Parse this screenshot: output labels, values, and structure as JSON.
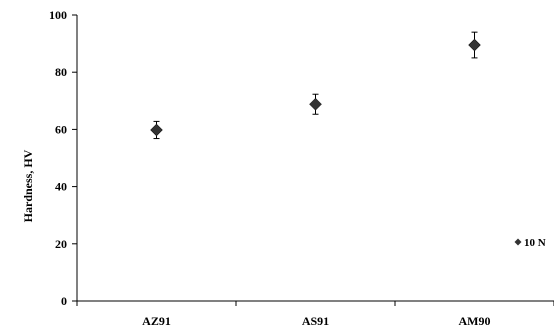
{
  "chart_data": {
    "type": "scatter",
    "categories": [
      "AZ91",
      "AS91",
      "AM90"
    ],
    "series": [
      {
        "name": "10 N",
        "values": [
          59.8,
          68.8,
          89.5
        ],
        "error": [
          3.0,
          3.5,
          4.5
        ],
        "color": "#333333",
        "marker": "diamond"
      }
    ],
    "ylabel": "Hardness, HV",
    "ylim": [
      0,
      100
    ],
    "yticks": [
      0,
      20,
      40,
      60,
      80,
      100
    ],
    "grid": false,
    "legend_position": "right"
  }
}
